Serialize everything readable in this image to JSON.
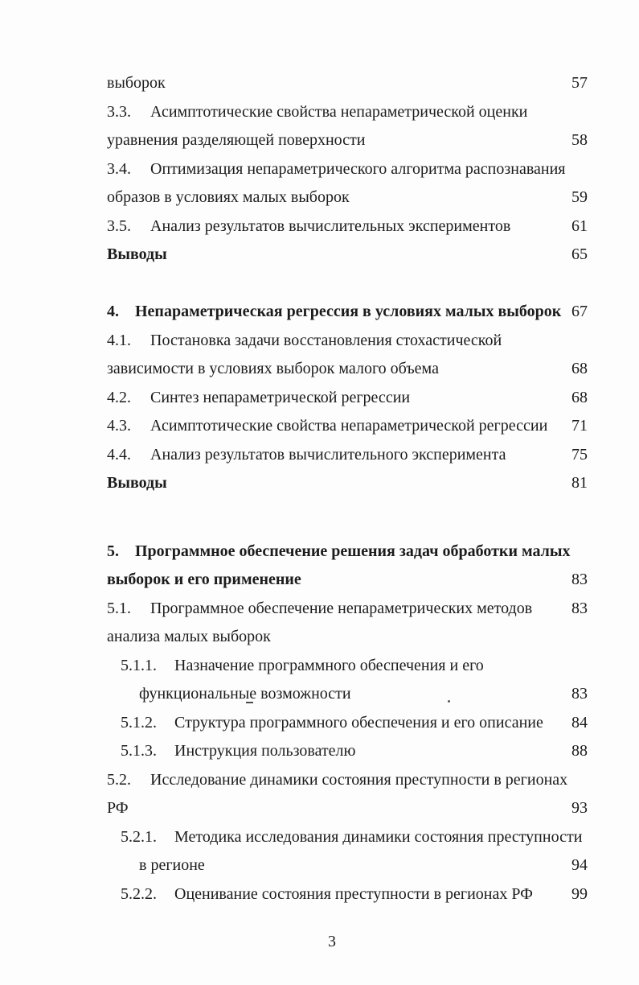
{
  "page": {
    "footer_page_number": "3"
  },
  "toc": {
    "lines": [
      {
        "text": "выборок",
        "page": "57"
      },
      {
        "num": "3.3.",
        "text": "Асимптотические свойства непараметрической оценки"
      },
      {
        "text": "уравнения разделяющей поверхности",
        "page": "58"
      },
      {
        "num": "3.4.",
        "text": "Оптимизация непараметрического алгоритма распознавания"
      },
      {
        "text": "образов в условиях малых выборок",
        "page": "59"
      },
      {
        "num": "3.5.",
        "text": "Анализ результатов вычислительных экспериментов",
        "page": "61"
      },
      {
        "text": "Выводы",
        "page": "65"
      },
      {
        "num": "4.",
        "text": "Непараметрическая регрессия в условиях малых выборок",
        "page": "67"
      },
      {
        "num": "4.1.",
        "text": "Постановка задачи восстановления стохастической"
      },
      {
        "text": "зависимости в условиях выборок малого объема",
        "page": "68"
      },
      {
        "num": "4.2.",
        "text": "Синтез непараметрической регрессии",
        "page": "68"
      },
      {
        "num": "4.3.",
        "text": "Асимптотические свойства непараметрической регрессии",
        "page": "71"
      },
      {
        "num": "4.4.",
        "text": "Анализ результатов вычислительного эксперимента",
        "page": "75"
      },
      {
        "text": "Выводы",
        "page": "81"
      },
      {
        "num": "5.",
        "text": "Программное обеспечение решения задач обработки малых"
      },
      {
        "text": "выборок и его применение",
        "page": "83"
      },
      {
        "num": "5.1.",
        "text": "Программное обеспечение непараметрических методов",
        "page": "83"
      },
      {
        "text": "анализа малых выборок"
      },
      {
        "num": "5.1.1.",
        "text": "Назначение программного обеспечения и его"
      },
      {
        "text": "функциональные возможности",
        "page": "83"
      },
      {
        "num": "5.1.2.",
        "text": "Структура программного обеспечения и его описание",
        "page": "84"
      },
      {
        "num": "5.1.3.",
        "text": "Инструкция пользователю",
        "page": "88"
      },
      {
        "num": "5.2.",
        "text": "Исследование динамики состояния преступности в регионах"
      },
      {
        "text": "РФ",
        "page": "93"
      },
      {
        "num": "5.2.1.",
        "text": "Методика исследования динамики состояния преступности"
      },
      {
        "text": "в регионе",
        "page": "94"
      },
      {
        "num": "5.2.2.",
        "text": "Оценивание состояния преступности в регионах РФ",
        "page": "99"
      }
    ]
  }
}
